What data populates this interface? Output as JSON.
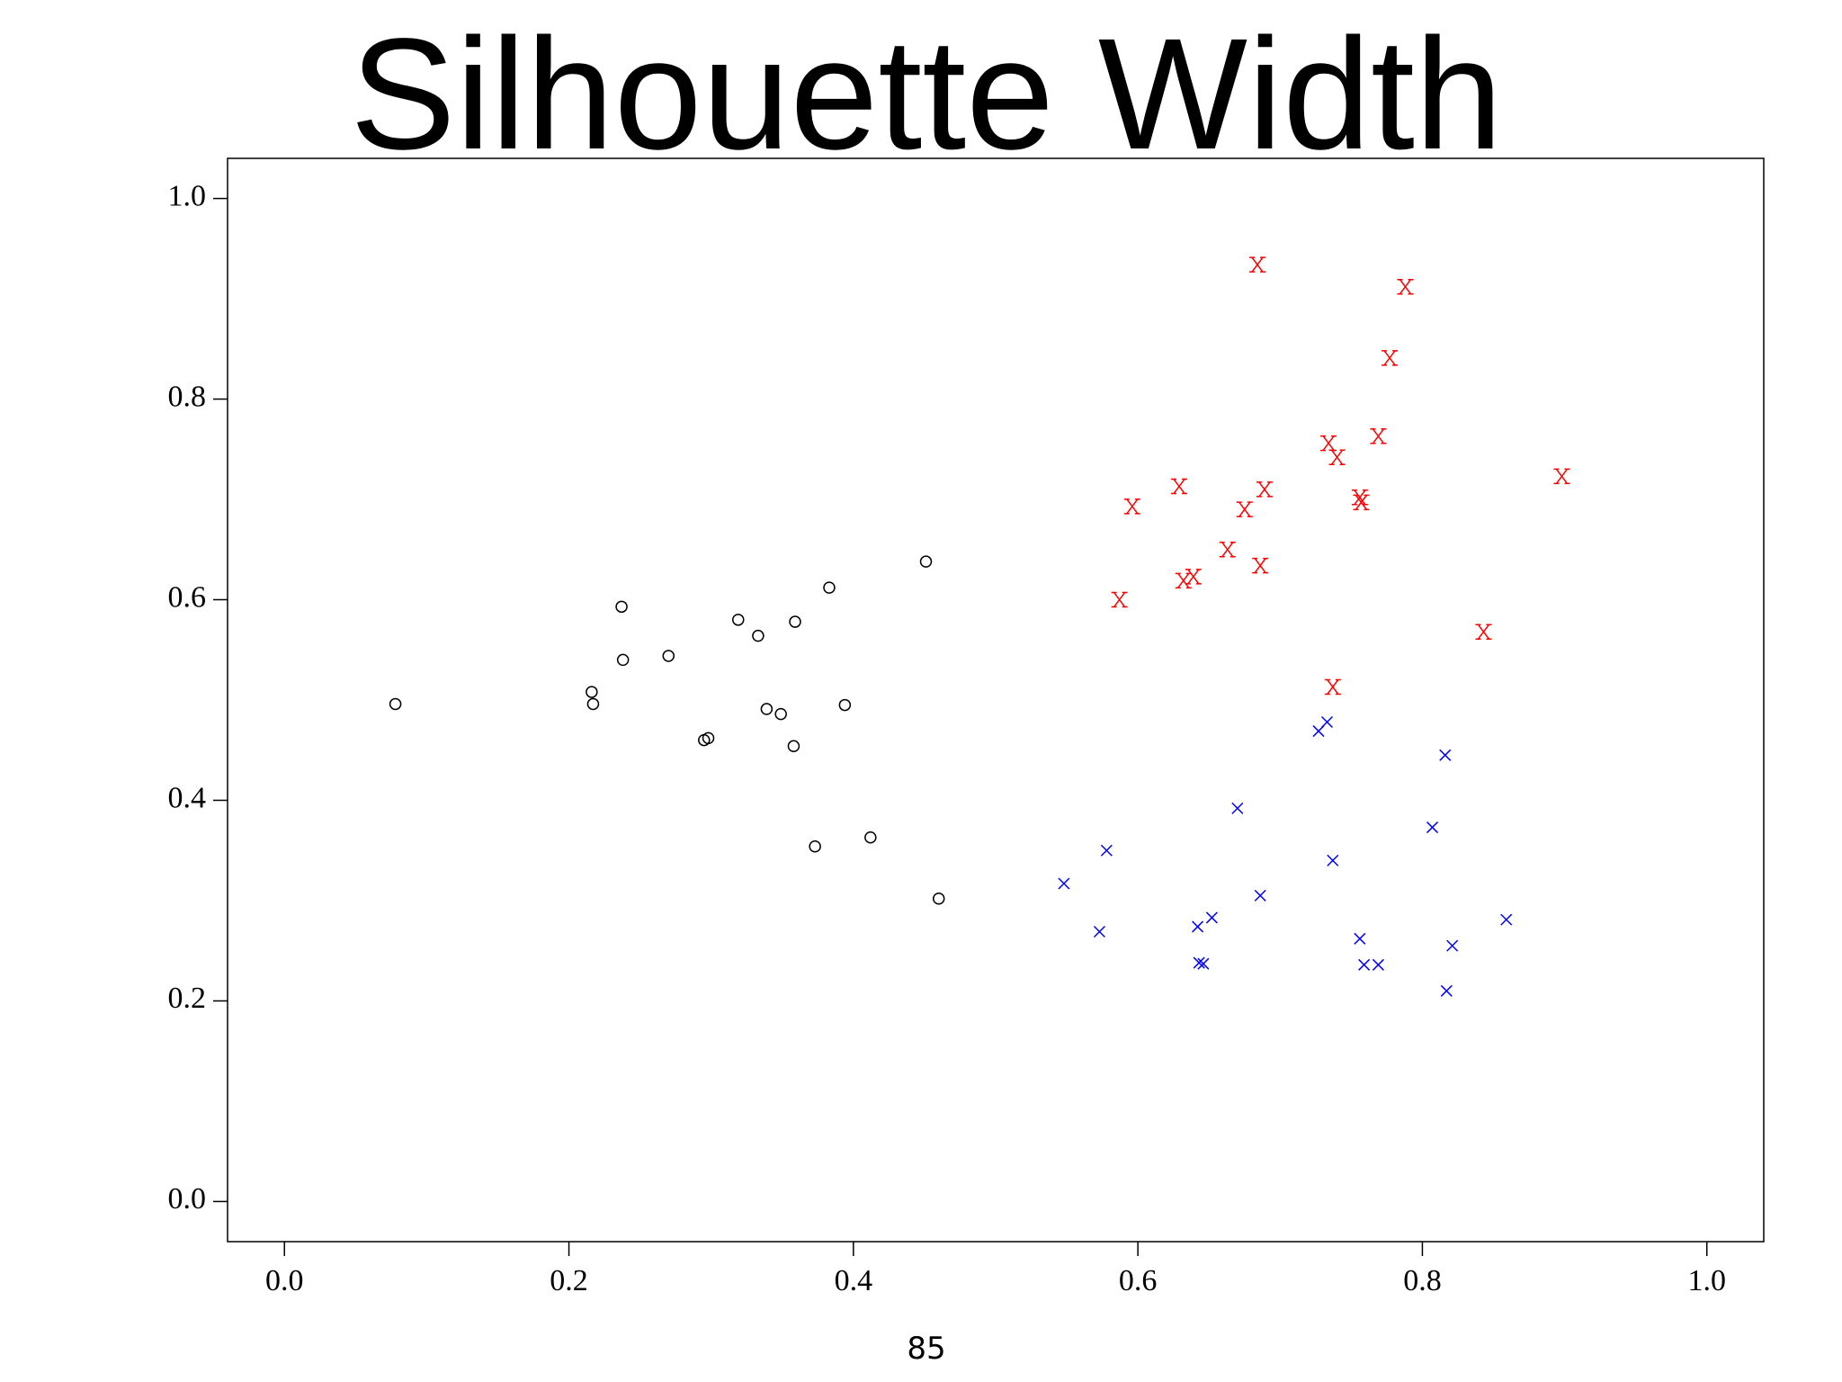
{
  "chart_data": {
    "type": "scatter",
    "title": "Silhouette Width",
    "x_label": "85",
    "xlim": [
      -0.04,
      1.04
    ],
    "ylim": [
      -0.04,
      1.04
    ],
    "xticks": [
      {
        "value": 0,
        "label": "0.0"
      },
      {
        "value": 0.2,
        "label": "0.2"
      },
      {
        "value": 0.4,
        "label": "0.4"
      },
      {
        "value": 0.6,
        "label": "0.6"
      },
      {
        "value": 0.8,
        "label": "0.8"
      },
      {
        "value": 1,
        "label": "1.0"
      }
    ],
    "yticks": [
      {
        "value": 0,
        "label": "0.0"
      },
      {
        "value": 0.2,
        "label": "0.2"
      },
      {
        "value": 0.4,
        "label": "0.4"
      },
      {
        "value": 0.6,
        "label": "0.6"
      },
      {
        "value": 0.8,
        "label": "0.8"
      },
      {
        "value": 1,
        "label": "1.0"
      }
    ],
    "grid": false,
    "series": [
      {
        "color": "#000000",
        "marker": "circle",
        "x": [
          0.078,
          0.216,
          0.217,
          0.237,
          0.238,
          0.27,
          0.295,
          0.298,
          0.319,
          0.333,
          0.339,
          0.349,
          0.358,
          0.359,
          0.373,
          0.383,
          0.394,
          0.412,
          0.451,
          0.46
        ],
        "values": [
          0.496,
          0.508,
          0.496,
          0.593,
          0.54,
          0.544,
          0.46,
          0.462,
          0.58,
          0.564,
          0.491,
          0.486,
          0.454,
          0.578,
          0.354,
          0.612,
          0.495,
          0.363,
          0.638,
          0.302
        ]
      },
      {
        "color": "#ff0000",
        "marker": "letter-x",
        "x": [
          0.684,
          0.788,
          0.777,
          0.734,
          0.769,
          0.74,
          0.898,
          0.629,
          0.689,
          0.596,
          0.675,
          0.756,
          0.757,
          0.663,
          0.686,
          0.632,
          0.639,
          0.587,
          0.843,
          0.737
        ],
        "values": [
          0.934,
          0.912,
          0.841,
          0.756,
          0.763,
          0.742,
          0.723,
          0.713,
          0.71,
          0.693,
          0.69,
          0.702,
          0.697,
          0.65,
          0.634,
          0.619,
          0.623,
          0.6,
          0.568,
          0.513
        ]
      },
      {
        "color": "#0000ff",
        "marker": "cross",
        "x": [
          0.733,
          0.727,
          0.816,
          0.67,
          0.807,
          0.578,
          0.737,
          0.548,
          0.686,
          0.859,
          0.652,
          0.642,
          0.573,
          0.756,
          0.821,
          0.643,
          0.646,
          0.759,
          0.769,
          0.817
        ],
        "values": [
          0.478,
          0.469,
          0.445,
          0.392,
          0.373,
          0.35,
          0.34,
          0.317,
          0.305,
          0.281,
          0.283,
          0.274,
          0.269,
          0.262,
          0.255,
          0.238,
          0.237,
          0.236,
          0.236,
          0.21
        ]
      }
    ]
  }
}
